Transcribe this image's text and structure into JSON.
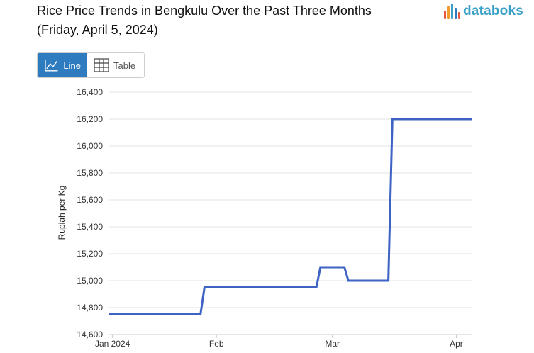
{
  "title_line1": "Rice Price Trends in Bengkulu Over the Past Three Months",
  "title_line2": "(Friday, April 5, 2024)",
  "logo": {
    "text": "databoks",
    "color": "#3aa0c8",
    "mark_colors": [
      "#e8553a",
      "#f29b2f",
      "#3aa0c8",
      "#2f7bbf",
      "#e8553a"
    ]
  },
  "toggle": {
    "line_label": "Line",
    "table_label": "Table",
    "line_icon": "line-chart-icon",
    "table_icon": "table-grid-icon",
    "active": "Line",
    "active_color": "#2f7bbf"
  },
  "chart_data": {
    "type": "line",
    "title": "Rice Price Trends in Bengkulu Over the Past Three Months",
    "subtitle": "(Friday, April 5, 2024)",
    "xlabel": "",
    "ylabel": "Rupiah per Kg",
    "ylim": [
      14600,
      16400
    ],
    "yticks": [
      14600,
      14800,
      15000,
      15200,
      15400,
      15600,
      15800,
      16000,
      16200,
      16400
    ],
    "ytick_labels": [
      "14,600",
      "14,800",
      "15,000",
      "15,200",
      "15,400",
      "15,600",
      "15,800",
      "16,000",
      "16,200",
      "16,400"
    ],
    "xlim": [
      "2024-01-05",
      "2024-04-05"
    ],
    "xticks": [
      {
        "date": "2024-01-06",
        "label": "Jan 2024"
      },
      {
        "date": "2024-02-01",
        "label": "Feb"
      },
      {
        "date": "2024-03-01",
        "label": "Mar"
      },
      {
        "date": "2024-04-01",
        "label": "Apr"
      }
    ],
    "grid": true,
    "line_color": "#3f63c4",
    "series": [
      {
        "x": [
          "2024-01-05",
          "2024-01-28",
          "2024-01-29",
          "2024-02-26",
          "2024-02-27",
          "2024-03-04",
          "2024-03-05",
          "2024-03-15",
          "2024-03-16",
          "2024-04-05"
        ],
        "values": [
          14750,
          14750,
          14950,
          14950,
          15100,
          15100,
          15000,
          15000,
          16200,
          16200
        ]
      }
    ]
  }
}
